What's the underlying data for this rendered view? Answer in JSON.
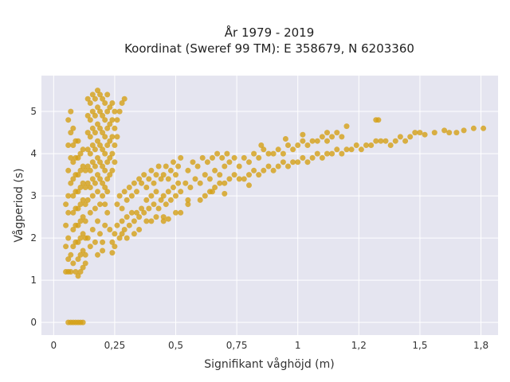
{
  "chart_data": {
    "type": "scatter",
    "title_line1": "År 1979 - 2019",
    "title_line2": "Koordinat (Sweref 99 TM): E 358679, N 6203360",
    "xlabel": "Signifikant våghöjd (m)",
    "ylabel": "Vågperiod (s)",
    "xlim": [
      -0.05,
      1.82
    ],
    "ylim": [
      -0.3,
      5.85
    ],
    "x_ticks": [
      0,
      0.25,
      0.5,
      0.75,
      1,
      1.25,
      1.5,
      1.75
    ],
    "x_tick_labels": [
      "0",
      "0,25",
      "0,5",
      "0,75",
      "1",
      "1,2",
      "1,5",
      "1,8"
    ],
    "y_ticks": [
      0,
      1,
      2,
      3,
      4,
      5
    ],
    "y_tick_labels": [
      "0",
      "1",
      "2",
      "3",
      "4",
      "5"
    ],
    "grid": true,
    "point_color": "#D4A017",
    "background_color": "#E5E5F0",
    "points": [
      [
        0.05,
        1.2
      ],
      [
        0.06,
        1.2
      ],
      [
        0.07,
        1.2
      ],
      [
        0.06,
        1.5
      ],
      [
        0.07,
        1.6
      ],
      [
        0.08,
        1.4
      ],
      [
        0.09,
        1.2
      ],
      [
        0.1,
        1.1
      ],
      [
        0.11,
        1.2
      ],
      [
        0.12,
        1.3
      ],
      [
        0.13,
        1.4
      ],
      [
        0.06,
        0
      ],
      [
        0.07,
        0
      ],
      [
        0.08,
        0
      ],
      [
        0.09,
        0
      ],
      [
        0.1,
        0
      ],
      [
        0.11,
        0
      ],
      [
        0.12,
        0
      ],
      [
        0.05,
        1.8
      ],
      [
        0.06,
        2.0
      ],
      [
        0.05,
        2.3
      ],
      [
        0.06,
        2.6
      ],
      [
        0.05,
        2.8
      ],
      [
        0.06,
        3.0
      ],
      [
        0.07,
        3.3
      ],
      [
        0.06,
        3.6
      ],
      [
        0.07,
        3.9
      ],
      [
        0.06,
        4.2
      ],
      [
        0.07,
        4.5
      ],
      [
        0.06,
        4.8
      ],
      [
        0.07,
        5.0
      ],
      [
        0.08,
        1.8
      ],
      [
        0.08,
        2.2
      ],
      [
        0.08,
        2.6
      ],
      [
        0.08,
        3.0
      ],
      [
        0.08,
        3.4
      ],
      [
        0.08,
        3.8
      ],
      [
        0.08,
        4.2
      ],
      [
        0.08,
        4.6
      ],
      [
        0.09,
        1.9
      ],
      [
        0.09,
        2.3
      ],
      [
        0.09,
        2.7
      ],
      [
        0.09,
        3.1
      ],
      [
        0.09,
        3.5
      ],
      [
        0.09,
        3.9
      ],
      [
        0.09,
        4.3
      ],
      [
        0.1,
        1.5
      ],
      [
        0.1,
        1.9
      ],
      [
        0.1,
        2.3
      ],
      [
        0.1,
        2.7
      ],
      [
        0.1,
        3.1
      ],
      [
        0.1,
        3.5
      ],
      [
        0.1,
        3.9
      ],
      [
        0.1,
        4.3
      ],
      [
        0.11,
        1.6
      ],
      [
        0.11,
        2.0
      ],
      [
        0.11,
        2.4
      ],
      [
        0.11,
        2.8
      ],
      [
        0.11,
        3.2
      ],
      [
        0.11,
        3.6
      ],
      [
        0.11,
        4.0
      ],
      [
        0.12,
        1.7
      ],
      [
        0.12,
        2.1
      ],
      [
        0.12,
        2.5
      ],
      [
        0.12,
        2.9
      ],
      [
        0.12,
        3.3
      ],
      [
        0.12,
        3.7
      ],
      [
        0.12,
        4.1
      ],
      [
        0.13,
        1.6
      ],
      [
        0.13,
        2.0
      ],
      [
        0.13,
        2.4
      ],
      [
        0.13,
        2.8
      ],
      [
        0.13,
        3.2
      ],
      [
        0.13,
        3.6
      ],
      [
        0.14,
        3.3
      ],
      [
        0.14,
        3.7
      ],
      [
        0.14,
        4.1
      ],
      [
        0.14,
        4.5
      ],
      [
        0.14,
        4.9
      ],
      [
        0.14,
        5.3
      ],
      [
        0.15,
        3.2
      ],
      [
        0.15,
        3.6
      ],
      [
        0.15,
        4.0
      ],
      [
        0.15,
        4.4
      ],
      [
        0.15,
        4.8
      ],
      [
        0.15,
        5.2
      ],
      [
        0.16,
        3.4
      ],
      [
        0.16,
        3.8
      ],
      [
        0.16,
        4.2
      ],
      [
        0.16,
        4.6
      ],
      [
        0.16,
        5.0
      ],
      [
        0.16,
        5.4
      ],
      [
        0.17,
        3.3
      ],
      [
        0.17,
        3.7
      ],
      [
        0.17,
        4.1
      ],
      [
        0.17,
        4.5
      ],
      [
        0.17,
        4.9
      ],
      [
        0.17,
        5.3
      ],
      [
        0.18,
        3.5
      ],
      [
        0.18,
        3.9
      ],
      [
        0.18,
        4.3
      ],
      [
        0.18,
        4.7
      ],
      [
        0.18,
        5.1
      ],
      [
        0.18,
        5.5
      ],
      [
        0.19,
        3.4
      ],
      [
        0.19,
        3.8
      ],
      [
        0.19,
        4.2
      ],
      [
        0.19,
        4.6
      ],
      [
        0.19,
        5.0
      ],
      [
        0.19,
        5.4
      ],
      [
        0.2,
        3.3
      ],
      [
        0.2,
        3.7
      ],
      [
        0.2,
        4.1
      ],
      [
        0.2,
        4.5
      ],
      [
        0.2,
        4.9
      ],
      [
        0.2,
        5.3
      ],
      [
        0.21,
        3.2
      ],
      [
        0.21,
        3.6
      ],
      [
        0.21,
        4.0
      ],
      [
        0.21,
        4.4
      ],
      [
        0.21,
        4.8
      ],
      [
        0.21,
        5.2
      ],
      [
        0.22,
        3.4
      ],
      [
        0.22,
        3.8
      ],
      [
        0.22,
        4.2
      ],
      [
        0.22,
        4.6
      ],
      [
        0.22,
        5.0
      ],
      [
        0.22,
        5.4
      ],
      [
        0.23,
        3.5
      ],
      [
        0.23,
        3.9
      ],
      [
        0.23,
        4.3
      ],
      [
        0.23,
        4.7
      ],
      [
        0.23,
        5.1
      ],
      [
        0.24,
        3.6
      ],
      [
        0.24,
        4.0
      ],
      [
        0.24,
        4.4
      ],
      [
        0.24,
        4.8
      ],
      [
        0.24,
        5.2
      ],
      [
        0.25,
        3.8
      ],
      [
        0.25,
        4.2
      ],
      [
        0.25,
        4.6
      ],
      [
        0.25,
        5.0
      ],
      [
        0.26,
        4.4
      ],
      [
        0.26,
        4.8
      ],
      [
        0.27,
        5.0
      ],
      [
        0.28,
        5.2
      ],
      [
        0.29,
        5.3
      ],
      [
        0.14,
        2.0
      ],
      [
        0.15,
        1.8
      ],
      [
        0.16,
        2.2
      ],
      [
        0.17,
        1.9
      ],
      [
        0.18,
        2.4
      ],
      [
        0.19,
        2.1
      ],
      [
        0.2,
        1.9
      ],
      [
        0.21,
        2.3
      ],
      [
        0.22,
        2.6
      ],
      [
        0.23,
        2.2
      ],
      [
        0.14,
        2.9
      ],
      [
        0.15,
        2.6
      ],
      [
        0.16,
        3.0
      ],
      [
        0.17,
        2.7
      ],
      [
        0.18,
        3.1
      ],
      [
        0.19,
        2.8
      ],
      [
        0.2,
        3.0
      ],
      [
        0.21,
        2.8
      ],
      [
        0.22,
        3.1
      ],
      [
        0.24,
        1.9
      ],
      [
        0.25,
        2.1
      ],
      [
        0.26,
        2.3
      ],
      [
        0.27,
        2.0
      ],
      [
        0.28,
        2.4
      ],
      [
        0.29,
        2.2
      ],
      [
        0.3,
        2.5
      ],
      [
        0.31,
        2.3
      ],
      [
        0.32,
        2.6
      ],
      [
        0.26,
        2.8
      ],
      [
        0.27,
        3.0
      ],
      [
        0.28,
        2.7
      ],
      [
        0.29,
        3.1
      ],
      [
        0.3,
        2.9
      ],
      [
        0.31,
        3.2
      ],
      [
        0.32,
        3.0
      ],
      [
        0.33,
        3.3
      ],
      [
        0.34,
        3.1
      ],
      [
        0.35,
        3.4
      ],
      [
        0.33,
        2.4
      ],
      [
        0.34,
        2.6
      ],
      [
        0.35,
        2.5
      ],
      [
        0.36,
        2.7
      ],
      [
        0.37,
        2.6
      ],
      [
        0.38,
        2.9
      ],
      [
        0.39,
        2.7
      ],
      [
        0.4,
        3.0
      ],
      [
        0.41,
        2.8
      ],
      [
        0.42,
        3.1
      ],
      [
        0.36,
        3.3
      ],
      [
        0.37,
        3.5
      ],
      [
        0.38,
        3.2
      ],
      [
        0.39,
        3.4
      ],
      [
        0.4,
        3.6
      ],
      [
        0.41,
        3.3
      ],
      [
        0.42,
        3.5
      ],
      [
        0.43,
        3.7
      ],
      [
        0.44,
        3.4
      ],
      [
        0.43,
        2.7
      ],
      [
        0.44,
        2.9
      ],
      [
        0.45,
        3.0
      ],
      [
        0.46,
        2.8
      ],
      [
        0.47,
        3.1
      ],
      [
        0.48,
        2.9
      ],
      [
        0.49,
        3.2
      ],
      [
        0.5,
        3.0
      ],
      [
        0.51,
        3.3
      ],
      [
        0.45,
        3.5
      ],
      [
        0.46,
        3.7
      ],
      [
        0.47,
        3.4
      ],
      [
        0.48,
        3.6
      ],
      [
        0.49,
        3.8
      ],
      [
        0.5,
        3.5
      ],
      [
        0.51,
        3.7
      ],
      [
        0.52,
        3.9
      ],
      [
        0.4,
        2.4
      ],
      [
        0.45,
        2.5
      ],
      [
        0.5,
        2.6
      ],
      [
        0.55,
        2.8
      ],
      [
        0.3,
        2.0
      ],
      [
        0.35,
        2.2
      ],
      [
        0.52,
        3.1
      ],
      [
        0.54,
        3.3
      ],
      [
        0.56,
        3.2
      ],
      [
        0.58,
        3.4
      ],
      [
        0.6,
        3.3
      ],
      [
        0.62,
        3.5
      ],
      [
        0.64,
        3.4
      ],
      [
        0.66,
        3.6
      ],
      [
        0.68,
        3.5
      ],
      [
        0.7,
        3.7
      ],
      [
        0.55,
        3.6
      ],
      [
        0.57,
        3.8
      ],
      [
        0.59,
        3.7
      ],
      [
        0.61,
        3.9
      ],
      [
        0.63,
        3.8
      ],
      [
        0.65,
        3.9
      ],
      [
        0.67,
        4.0
      ],
      [
        0.69,
        3.9
      ],
      [
        0.71,
        4.0
      ],
      [
        0.6,
        2.9
      ],
      [
        0.62,
        3.0
      ],
      [
        0.64,
        3.1
      ],
      [
        0.66,
        3.2
      ],
      [
        0.68,
        3.3
      ],
      [
        0.7,
        3.3
      ],
      [
        0.72,
        3.4
      ],
      [
        0.74,
        3.5
      ],
      [
        0.76,
        3.4
      ],
      [
        0.72,
        3.8
      ],
      [
        0.74,
        3.9
      ],
      [
        0.76,
        3.7
      ],
      [
        0.78,
        3.9
      ],
      [
        0.8,
        3.8
      ],
      [
        0.82,
        4.0
      ],
      [
        0.84,
        3.9
      ],
      [
        0.86,
        4.1
      ],
      [
        0.88,
        4.0
      ],
      [
        0.78,
        3.4
      ],
      [
        0.8,
        3.5
      ],
      [
        0.82,
        3.6
      ],
      [
        0.84,
        3.5
      ],
      [
        0.86,
        3.6
      ],
      [
        0.88,
        3.7
      ],
      [
        0.9,
        3.6
      ],
      [
        0.92,
        3.7
      ],
      [
        0.94,
        3.8
      ],
      [
        0.9,
        4.0
      ],
      [
        0.92,
        4.1
      ],
      [
        0.94,
        4.0
      ],
      [
        0.96,
        4.2
      ],
      [
        0.98,
        4.1
      ],
      [
        1.0,
        4.2
      ],
      [
        1.02,
        4.3
      ],
      [
        1.04,
        4.2
      ],
      [
        1.06,
        4.3
      ],
      [
        0.96,
        3.7
      ],
      [
        0.98,
        3.8
      ],
      [
        1.0,
        3.8
      ],
      [
        1.02,
        3.9
      ],
      [
        1.04,
        3.8
      ],
      [
        1.06,
        3.9
      ],
      [
        1.08,
        4.0
      ],
      [
        1.1,
        3.9
      ],
      [
        1.12,
        4.0
      ],
      [
        1.08,
        4.3
      ],
      [
        1.1,
        4.4
      ],
      [
        1.12,
        4.3
      ],
      [
        1.14,
        4.4
      ],
      [
        1.16,
        4.5
      ],
      [
        1.18,
        4.4
      ],
      [
        1.14,
        4.0
      ],
      [
        1.16,
        4.1
      ],
      [
        1.18,
        4.0
      ],
      [
        1.2,
        4.1
      ],
      [
        1.22,
        4.1
      ],
      [
        1.24,
        4.2
      ],
      [
        1.26,
        4.1
      ],
      [
        1.28,
        4.2
      ],
      [
        1.3,
        4.2
      ],
      [
        1.2,
        4.65
      ],
      [
        1.32,
        4.8
      ],
      [
        1.33,
        4.8
      ],
      [
        1.32,
        4.3
      ],
      [
        1.34,
        4.3
      ],
      [
        1.36,
        4.3
      ],
      [
        1.38,
        4.2
      ],
      [
        1.4,
        4.3
      ],
      [
        1.42,
        4.4
      ],
      [
        1.44,
        4.3
      ],
      [
        1.46,
        4.4
      ],
      [
        1.48,
        4.5
      ],
      [
        1.5,
        4.5
      ],
      [
        1.52,
        4.45
      ],
      [
        1.56,
        4.5
      ],
      [
        1.6,
        4.55
      ],
      [
        1.62,
        4.5
      ],
      [
        1.65,
        4.5
      ],
      [
        1.68,
        4.55
      ],
      [
        1.72,
        4.6
      ],
      [
        1.76,
        4.6
      ],
      [
        0.95,
        4.35
      ],
      [
        1.02,
        4.45
      ],
      [
        1.12,
        4.5
      ],
      [
        0.85,
        4.2
      ],
      [
        0.65,
        3.1
      ],
      [
        0.55,
        2.9
      ],
      [
        0.45,
        2.4
      ],
      [
        0.7,
        3.05
      ],
      [
        0.8,
        3.25
      ],
      [
        0.38,
        2.4
      ],
      [
        0.42,
        2.5
      ],
      [
        0.47,
        2.45
      ],
      [
        0.52,
        2.6
      ],
      [
        0.33,
        2.1
      ],
      [
        0.28,
        2.1
      ],
      [
        0.25,
        1.8
      ],
      [
        0.24,
        1.65
      ],
      [
        0.2,
        1.7
      ],
      [
        0.18,
        1.6
      ]
    ]
  }
}
